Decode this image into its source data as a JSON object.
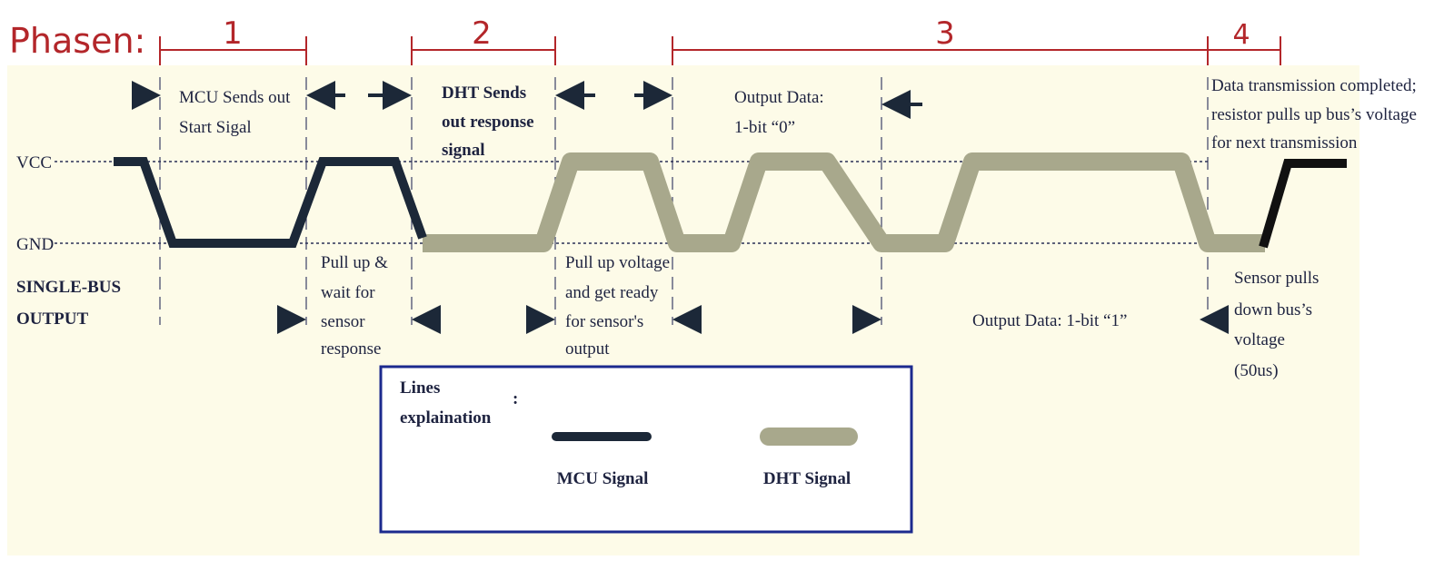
{
  "phases": {
    "title": "Phasen:",
    "labels": [
      "1",
      "2",
      "3",
      "4"
    ]
  },
  "axis": {
    "vcc": "VCC",
    "gnd": "GND",
    "bus_label": [
      "SINGLE-BUS",
      "OUTPUT"
    ]
  },
  "annotations": {
    "mcu_start": [
      "MCU Sends out",
      "Start Sigal"
    ],
    "dht_response": [
      "DHT Sends",
      "out response",
      "signal"
    ],
    "bit0": [
      "Output Data:",
      "1-bit “0”"
    ],
    "completed": [
      "Data transmission completed;",
      "resistor pulls up bus’s voltage",
      "for next transmission"
    ],
    "pull_up_wait": [
      "Pull up &",
      "wait for",
      "sensor",
      "response"
    ],
    "pull_up_ready": [
      "Pull up voltage",
      "and get ready",
      "for sensor's",
      "output"
    ],
    "bit1": "Output Data: 1-bit “1”",
    "sensor_pulls": [
      "Sensor pulls",
      "down bus’s",
      "voltage",
      "(50us)"
    ]
  },
  "legend": {
    "title": [
      "Lines",
      "explaination"
    ],
    "colon": ":",
    "mcu": "MCU Signal",
    "dht": "DHT Signal"
  },
  "colors": {
    "mcu_signal": "#1c2838",
    "dht_signal": "#a8a88c",
    "phase_marks": "#b3262a",
    "background": "#fdfbe8",
    "legend_border": "#1c2a8e"
  }
}
